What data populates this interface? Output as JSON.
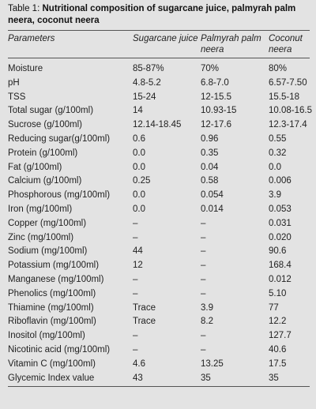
{
  "caption": {
    "prefix": "Table 1: ",
    "title": "Nutritional composition of sugarcane juice, palmyrah palm neera, coconut neera"
  },
  "table": {
    "headers": [
      "Parameters",
      "Sugarcane juice",
      "Palmyrah palm neera",
      "Coconut neera"
    ],
    "rows": [
      [
        "Moisture",
        "85-87%",
        "70%",
        "80%"
      ],
      [
        "pH",
        "4.8-5.2",
        "6.8-7.0",
        "6.57-7.50"
      ],
      [
        "TSS",
        "15-24",
        "12-15.5",
        "15.5-18"
      ],
      [
        "Total sugar (g/100ml)",
        "14",
        "10.93-15",
        "10.08-16.5"
      ],
      [
        "Sucrose (g/100ml)",
        "12.14-18.45",
        "12-17.6",
        "12.3-17.4"
      ],
      [
        "Reducing sugar(g/100ml)",
        "0.6",
        "0.96",
        "0.55"
      ],
      [
        "Protein (g/100ml)",
        "0.0",
        "0.35",
        "0.32"
      ],
      [
        "Fat (g/100ml)",
        "0.0",
        "0.04",
        "0.0"
      ],
      [
        "Calcium (g/100ml)",
        "0.25",
        "0.58",
        "0.006"
      ],
      [
        "Phosphorous (mg/100ml)",
        "0.0",
        "0.054",
        "3.9"
      ],
      [
        "Iron (mg/100ml)",
        "0.0",
        "0.014",
        "0.053"
      ],
      [
        "Copper (mg/100ml)",
        "–",
        "–",
        "0.031"
      ],
      [
        "Zinc (mg/100ml)",
        "–",
        "–",
        "0.020"
      ],
      [
        "Sodium (mg/100ml)",
        "44",
        "–",
        "90.6"
      ],
      [
        "Potassium (mg/100ml)",
        "12",
        "–",
        "168.4"
      ],
      [
        "Manganese (mg/100ml)",
        "–",
        "–",
        "0.012"
      ],
      [
        "Phenolics (mg/100ml)",
        "–",
        "–",
        "5.10"
      ],
      [
        "Thiamine (mg/100ml)",
        "Trace",
        "3.9",
        "77"
      ],
      [
        "Riboflavin (mg/100ml)",
        "Trace",
        "8.2",
        "12.2"
      ],
      [
        "Inositol (mg/100ml)",
        "–",
        "–",
        "127.7"
      ],
      [
        "Nicotinic acid (mg/100ml)",
        "–",
        "–",
        "40.6"
      ],
      [
        "Vitamin C (mg/100ml)",
        "4.6",
        "13.25",
        "17.5"
      ],
      [
        "Glycemic Index value",
        "43",
        "35",
        "35"
      ]
    ]
  }
}
